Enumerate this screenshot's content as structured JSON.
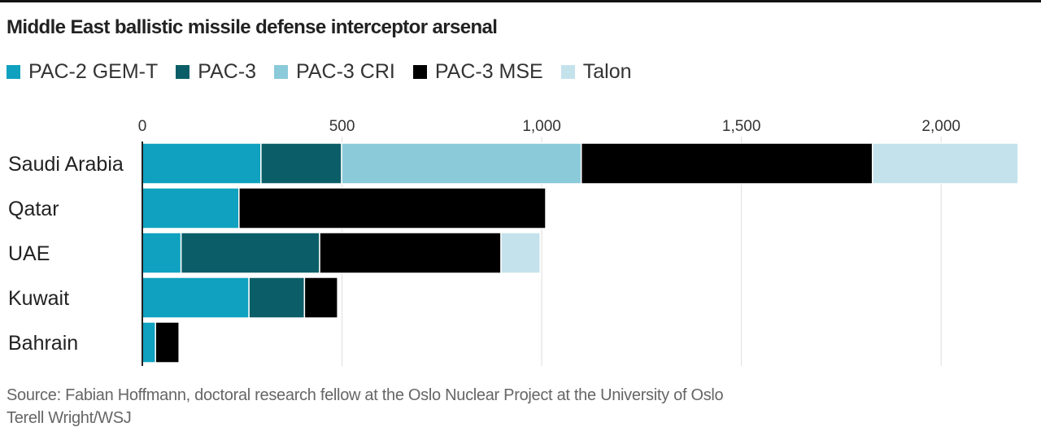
{
  "chart_data": {
    "type": "bar",
    "orientation": "horizontal",
    "stacked": true,
    "title": "Middle East ballistic missile defense interceptor arsenal",
    "xlabel": "",
    "ylabel": "",
    "xlim": [
      0,
      2200
    ],
    "xticks": [
      0,
      500,
      1000,
      1500,
      2000
    ],
    "xtick_labels": [
      "0",
      "500",
      "1,000",
      "1,500",
      "2,000"
    ],
    "grid": true,
    "legend_position": "top-left",
    "categories": [
      "Saudi Arabia",
      "Qatar",
      "UAE",
      "Kuwait",
      "Bahrain"
    ],
    "series": [
      {
        "name": "PAC-2 GEM-T",
        "color": "#0fa1bf",
        "values": [
          297,
          242,
          97,
          267,
          33
        ]
      },
      {
        "name": "PAC-3",
        "color": "#0b5e68",
        "values": [
          202,
          0,
          347,
          139,
          0
        ]
      },
      {
        "name": "PAC-3 CRI",
        "color": "#8bcad9",
        "values": [
          600,
          0,
          0,
          0,
          0
        ]
      },
      {
        "name": "PAC-3 MSE",
        "color": "#000000",
        "values": [
          729,
          768,
          454,
          83,
          59
        ]
      },
      {
        "name": "Talon",
        "color": "#c4e2ec",
        "values": [
          365,
          0,
          98,
          0,
          0
        ]
      }
    ]
  },
  "footer": {
    "source": "Source: Fabian Hoffmann, doctoral research fellow at the Oslo Nuclear Project at the University of Oslo",
    "credit": "Terell Wright/WSJ"
  }
}
